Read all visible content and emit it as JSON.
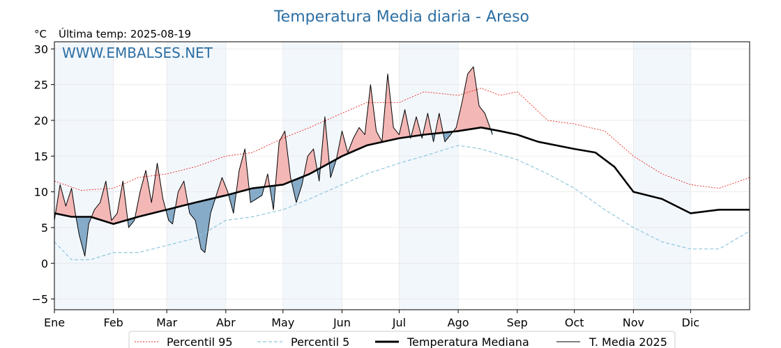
{
  "chart_data": {
    "type": "line",
    "title": "Temperatura Media diaria - Areso",
    "unit_label": "°C",
    "last_temp_label": "Última temp: 2025-08-19",
    "watermark": "WWW.EMBALSES.NET",
    "ylim": [
      -6.5,
      31
    ],
    "yticks": [
      -5,
      0,
      5,
      10,
      15,
      20,
      25,
      30
    ],
    "xlim": [
      1,
      366
    ],
    "months": [
      {
        "label": "Ene",
        "day": 1
      },
      {
        "label": "Feb",
        "day": 32
      },
      {
        "label": "Mar",
        "day": 60
      },
      {
        "label": "Abr",
        "day": 91
      },
      {
        "label": "May",
        "day": 121
      },
      {
        "label": "Jun",
        "day": 152
      },
      {
        "label": "Jul",
        "day": 182
      },
      {
        "label": "Ago",
        "day": 213
      },
      {
        "label": "Sep",
        "day": 244
      },
      {
        "label": "Oct",
        "day": 274
      },
      {
        "label": "Nov",
        "day": 305
      },
      {
        "label": "Dic",
        "day": 335
      }
    ],
    "shaded_month_bands": [
      [
        1,
        32
      ],
      [
        60,
        91
      ],
      [
        121,
        152
      ],
      [
        182,
        213
      ],
      [
        305,
        335
      ]
    ],
    "grid": true,
    "legend_position": "bottom",
    "colors": {
      "p95": "#e8251f",
      "p5": "#8fc6dc",
      "median": "#000000",
      "y2025": "#000000",
      "above_fill": "#f3b7b5",
      "below_fill": "#86abc8",
      "title": "#2d6fa3",
      "band": "#f2f7fc"
    },
    "series": [
      {
        "key": "p95",
        "name": "Percentil 95",
        "days": [
          1,
          15,
          32,
          45,
          60,
          75,
          91,
          105,
          121,
          135,
          152,
          165,
          182,
          195,
          213,
          225,
          235,
          244,
          260,
          274,
          290,
          305,
          320,
          335,
          350,
          366
        ],
        "values": [
          11.5,
          10.2,
          10.5,
          12.0,
          12.5,
          13.5,
          15.0,
          15.5,
          17.5,
          19.0,
          21.0,
          22.5,
          22.5,
          24.0,
          23.5,
          24.5,
          23.5,
          24.0,
          20.0,
          19.5,
          18.5,
          15.0,
          12.5,
          11.0,
          10.5,
          12.0
        ]
      },
      {
        "key": "p5",
        "name": "Percentil 5",
        "days": [
          1,
          10,
          20,
          32,
          45,
          60,
          75,
          91,
          105,
          121,
          135,
          152,
          165,
          182,
          195,
          213,
          225,
          244,
          260,
          274,
          290,
          305,
          320,
          335,
          350,
          366
        ],
        "values": [
          3.0,
          0.5,
          0.5,
          1.5,
          1.5,
          2.5,
          3.5,
          6.0,
          6.5,
          7.5,
          9.0,
          11.0,
          12.5,
          14.0,
          15.0,
          16.5,
          16.0,
          14.5,
          12.5,
          10.5,
          7.5,
          5.0,
          3.0,
          2.0,
          2.0,
          4.5
        ]
      },
      {
        "key": "median",
        "name": "Temperatura Mediana",
        "days": [
          1,
          10,
          20,
          32,
          45,
          60,
          75,
          91,
          105,
          121,
          135,
          152,
          165,
          182,
          195,
          213,
          225,
          235,
          244,
          255,
          274,
          285,
          295,
          305,
          320,
          335,
          350,
          366
        ],
        "values": [
          7.0,
          6.5,
          6.5,
          5.5,
          6.5,
          7.5,
          8.5,
          9.5,
          10.5,
          11.0,
          12.5,
          15.0,
          16.5,
          17.5,
          18.0,
          18.5,
          19.0,
          18.5,
          18.0,
          17.0,
          16.0,
          15.5,
          13.5,
          10.0,
          9.0,
          7.0,
          7.5,
          7.5
        ]
      },
      {
        "key": "y2025",
        "name": "T. Media 2025",
        "days": [
          1,
          4,
          7,
          10,
          12,
          14,
          17,
          19,
          22,
          25,
          28,
          31,
          34,
          37,
          40,
          43,
          46,
          49,
          52,
          55,
          58,
          61,
          63,
          66,
          69,
          72,
          75,
          78,
          80,
          83,
          86,
          89,
          92,
          95,
          98,
          101,
          104,
          107,
          110,
          113,
          116,
          119,
          122,
          125,
          128,
          131,
          134,
          137,
          140,
          143,
          146,
          149,
          152,
          155,
          158,
          161,
          164,
          167,
          170,
          173,
          176,
          179,
          182,
          185,
          188,
          191,
          194,
          197,
          200,
          203,
          206,
          209,
          212,
          215,
          218,
          221,
          224,
          227,
          229,
          231
        ],
        "values": [
          6.0,
          11.0,
          8.0,
          10.5,
          7.0,
          4.0,
          1.0,
          5.5,
          7.5,
          8.5,
          11.5,
          6.0,
          7.0,
          11.5,
          5.0,
          6.0,
          10.0,
          13.0,
          8.5,
          14.0,
          9.0,
          6.0,
          5.5,
          10.0,
          11.5,
          7.0,
          6.0,
          2.0,
          1.5,
          7.0,
          9.5,
          12.0,
          10.0,
          7.0,
          13.0,
          16.0,
          8.5,
          9.0,
          9.5,
          12.5,
          7.5,
          17.0,
          18.5,
          12.0,
          8.5,
          11.0,
          15.0,
          16.0,
          11.5,
          20.5,
          12.0,
          14.5,
          18.5,
          15.5,
          17.5,
          19.0,
          18.0,
          25.0,
          18.5,
          17.0,
          26.5,
          19.0,
          18.0,
          21.5,
          17.5,
          20.5,
          17.5,
          21.0,
          17.0,
          21.0,
          17.0,
          18.0,
          19.0,
          22.5,
          26.5,
          27.5,
          22.0,
          21.0,
          19.5,
          18.0
        ]
      }
    ]
  }
}
